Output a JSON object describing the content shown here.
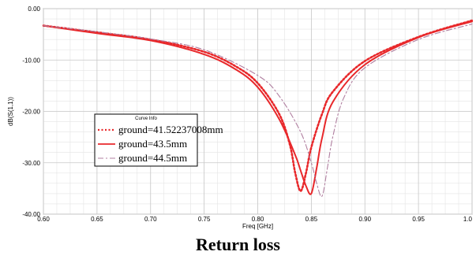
{
  "caption": "Return loss",
  "chart_data": {
    "type": "line",
    "xlabel": "Freq [GHz]",
    "ylabel": "dB(S(1,1))",
    "xlim": [
      0.6,
      1.0
    ],
    "ylim": [
      -40,
      0
    ],
    "x_ticks": [
      0.6,
      0.65,
      0.7,
      0.75,
      0.8,
      0.85,
      0.9,
      0.95,
      1.0
    ],
    "x_tick_labels": [
      "0.60",
      "0.65",
      "0.70",
      "0.75",
      "0.80",
      "0.85",
      "0.90",
      "0.95",
      "1.0"
    ],
    "y_ticks": [
      0,
      -10,
      -20,
      -30,
      -40
    ],
    "y_tick_labels": [
      "0.00",
      "-10.00",
      "-20.00",
      "-30.00",
      "-40.00"
    ],
    "grid": true,
    "legend": {
      "title": "Curve Info",
      "placement": "center-left"
    },
    "series": [
      {
        "name": "ground=41.52237008mm",
        "style": "dotted",
        "color": "#e8282b",
        "x": [
          0.6,
          0.65,
          0.7,
          0.75,
          0.78,
          0.8,
          0.82,
          0.83,
          0.835,
          0.84,
          0.845,
          0.85,
          0.86,
          0.87,
          0.9,
          0.95,
          1.0
        ],
        "y": [
          -3.3,
          -4.6,
          -6.0,
          -8.4,
          -11.3,
          -14.5,
          -20.5,
          -26.5,
          -32.0,
          -35.5,
          -32.0,
          -27.0,
          -20.5,
          -16.2,
          -10.2,
          -5.5,
          -2.3
        ]
      },
      {
        "name": "ground=43.5mm",
        "style": "solid",
        "color": "#e8282b",
        "x": [
          0.6,
          0.65,
          0.7,
          0.75,
          0.78,
          0.8,
          0.82,
          0.835,
          0.84,
          0.845,
          0.85,
          0.855,
          0.86,
          0.87,
          0.9,
          0.95,
          1.0
        ],
        "y": [
          -3.3,
          -4.8,
          -6.2,
          -8.9,
          -11.9,
          -15.3,
          -21.5,
          -28.5,
          -31.5,
          -34.5,
          -36.0,
          -31.0,
          -25.2,
          -18.2,
          -10.9,
          -5.6,
          -2.5
        ]
      },
      {
        "name": "ground=44.5mm",
        "style": "dashdot",
        "color": "#b07fa0",
        "x": [
          0.6,
          0.65,
          0.7,
          0.75,
          0.8,
          0.82,
          0.84,
          0.85,
          0.855,
          0.86,
          0.865,
          0.87,
          0.88,
          0.9,
          0.95,
          1.0
        ],
        "y": [
          -3.3,
          -4.5,
          -5.9,
          -8.0,
          -13.0,
          -17.0,
          -24.0,
          -30.0,
          -34.0,
          -36.5,
          -31.0,
          -25.0,
          -17.5,
          -11.5,
          -6.0,
          -3.0
        ]
      }
    ]
  }
}
